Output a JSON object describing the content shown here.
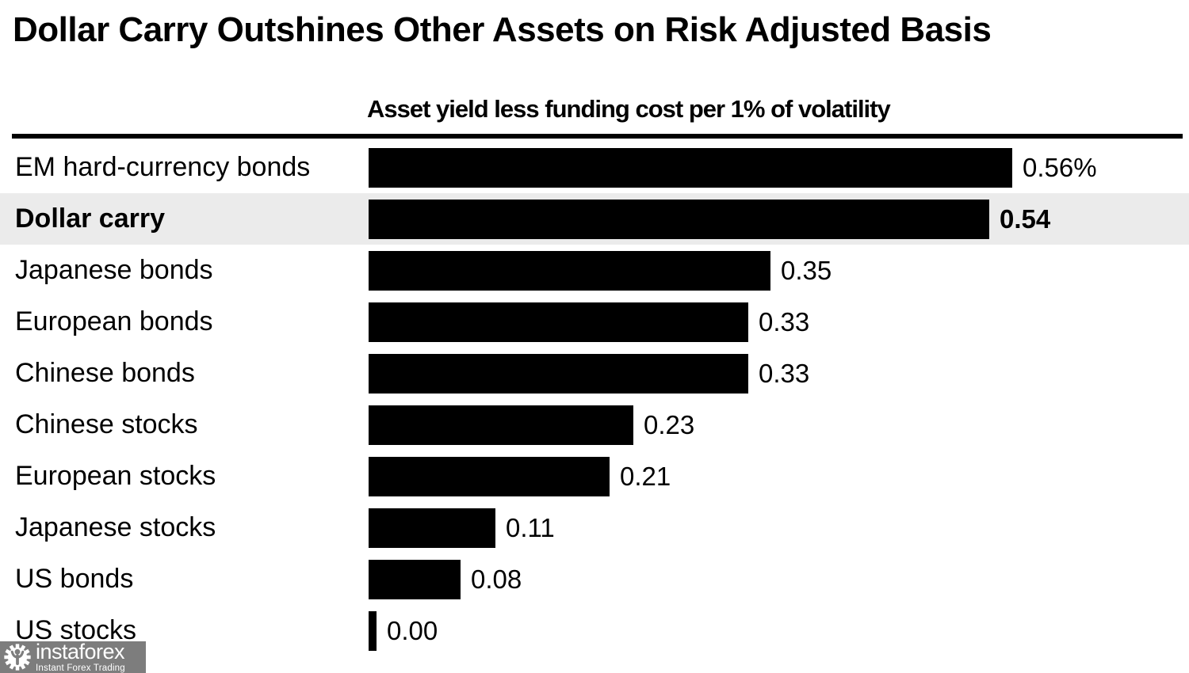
{
  "title": "Dollar Carry Outshines Other Assets on Risk Adjusted Basis",
  "chart_data": {
    "type": "bar",
    "orientation": "horizontal",
    "title": "Dollar Carry Outshines Other Assets on Risk Adjusted Basis",
    "axis_title": "Asset yield less funding cost per 1% of volatility",
    "categories": [
      "EM hard-currency bonds",
      "Dollar carry",
      "Japanese bonds",
      "European bonds",
      "Chinese bonds",
      "Chinese stocks",
      "European stocks",
      "Japanese stocks",
      "US bonds",
      "US stocks"
    ],
    "values": [
      0.56,
      0.54,
      0.35,
      0.33,
      0.33,
      0.23,
      0.21,
      0.11,
      0.08,
      0.0
    ],
    "value_labels": [
      "0.56%",
      "0.54",
      "0.35",
      "0.33",
      "0.33",
      "0.23",
      "0.21",
      "0.11",
      "0.08",
      "0.00"
    ],
    "highlighted_index": 1,
    "highlighted_category": "Dollar carry",
    "xlim": [
      0,
      0.56
    ],
    "grid": false,
    "legend": false,
    "bar_color": "#000000",
    "highlight_row_color": "#ebebeb"
  },
  "watermark": {
    "brand": "instaforex",
    "tagline": "Instant Forex Trading",
    "icon": "gear-person-icon",
    "background_color": "#7d7d7d",
    "text_color": "#ffffff"
  }
}
